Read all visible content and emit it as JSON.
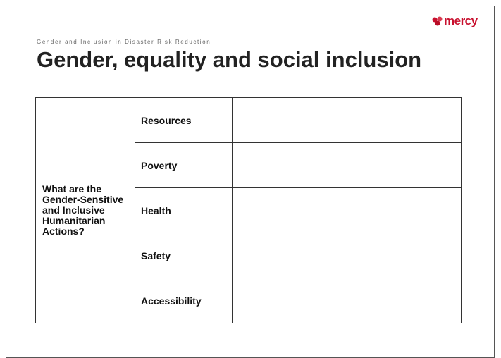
{
  "header": {
    "logo": "mercy",
    "subtitle": "Gender and Inclusion in Disaster Risk Reduction",
    "title": "Gender, equality and social inclusion"
  },
  "table": {
    "question": "What are the Gender-Sensitive and Inclusive Humanitarian Actions?",
    "rows": [
      "Resources",
      "Poverty",
      "Health",
      "Safety",
      "Accessibility"
    ]
  }
}
